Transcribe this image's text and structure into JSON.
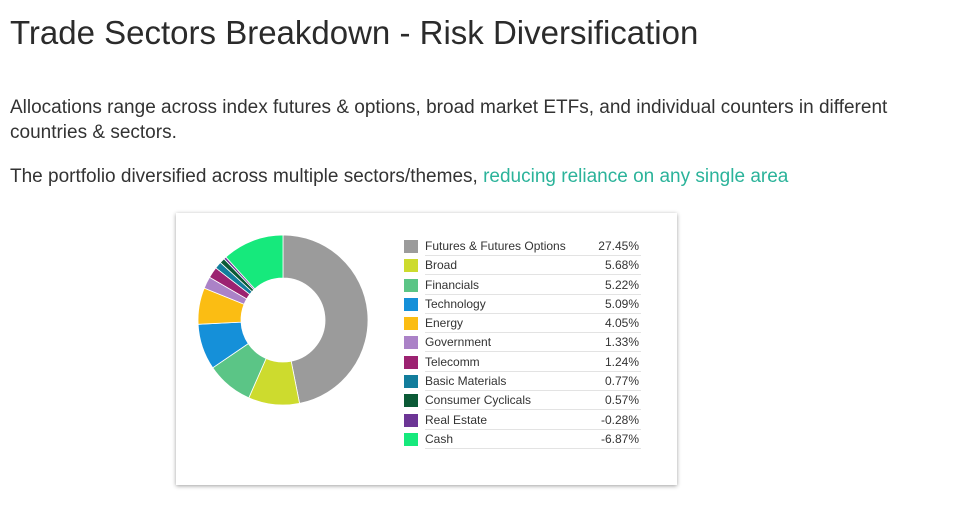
{
  "header": {
    "title": "Trade Sectors Breakdown - Risk Diversification",
    "paragraph1": "Allocations range across index futures & options, broad market ETFs, and individual counters in different countries & sectors.",
    "paragraph2_plain": "The portfolio diversified across multiple sectors/themes, ",
    "paragraph2_highlight": "reducing reliance on any single area",
    "highlight_color": "#2bb39a"
  },
  "chart_data": {
    "type": "pie",
    "style": "donut",
    "legend_position": "right",
    "series": [
      {
        "label": "Futures & Futures Options",
        "value": 27.45,
        "display": "27.45%",
        "color": "#9b9b9b"
      },
      {
        "label": "Broad",
        "value": 5.68,
        "display": "5.68%",
        "color": "#cddb2e"
      },
      {
        "label": "Financials",
        "value": 5.22,
        "display": "5.22%",
        "color": "#5bc586"
      },
      {
        "label": "Technology",
        "value": 5.09,
        "display": "5.09%",
        "color": "#1590d9"
      },
      {
        "label": "Energy",
        "value": 4.05,
        "display": "4.05%",
        "color": "#fbbd13"
      },
      {
        "label": "Government",
        "value": 1.33,
        "display": "1.33%",
        "color": "#ab82c7"
      },
      {
        "label": "Telecomm",
        "value": 1.24,
        "display": "1.24%",
        "color": "#9c2271"
      },
      {
        "label": "Basic Materials",
        "value": 0.77,
        "display": "0.77%",
        "color": "#127d9c"
      },
      {
        "label": "Consumer Cyclicals",
        "value": 0.57,
        "display": "0.57%",
        "color": "#0b5a36"
      },
      {
        "label": "Real Estate",
        "value": -0.28,
        "display": "-0.28%",
        "color": "#6c3595"
      },
      {
        "label": "Cash",
        "value": -6.87,
        "display": "-6.87%",
        "color": "#16e97c"
      }
    ]
  }
}
